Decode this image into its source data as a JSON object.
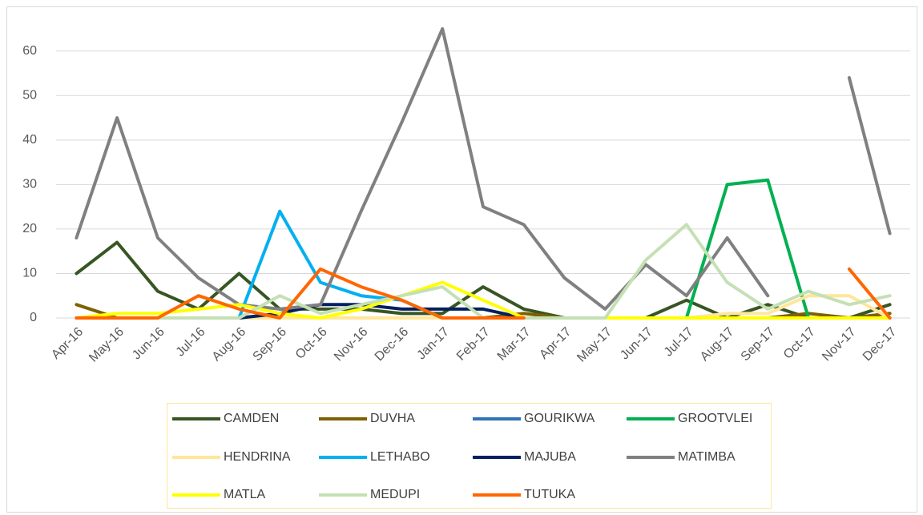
{
  "chart_data": {
    "type": "line",
    "categories": [
      "Apr-16",
      "May-16",
      "Jun-16",
      "Jul-16",
      "Aug-16",
      "Sep-16",
      "Oct-16",
      "Nov-16",
      "Dec-16",
      "Jan-17",
      "Feb-17",
      "Mar-17",
      "Apr-17",
      "May-17",
      "Jun-17",
      "Jul-17",
      "Aug-17",
      "Sep-17",
      "Oct-17",
      "Nov-17",
      "Dec-17"
    ],
    "series": [
      {
        "name": "CAMDEN",
        "color": "#375623",
        "values": [
          10,
          17,
          6,
          2,
          10,
          2,
          2,
          2,
          1,
          1,
          7,
          2,
          0,
          0,
          0,
          4,
          0,
          3,
          0,
          0,
          3
        ]
      },
      {
        "name": "DUVHA",
        "color": "#7f6000",
        "values": [
          3,
          0,
          0,
          0,
          0,
          0,
          0,
          0,
          0,
          0,
          0,
          1,
          0,
          0,
          0,
          0,
          0,
          0,
          1,
          0,
          1
        ]
      },
      {
        "name": "GOURIKWA",
        "color": "#2e75b6",
        "values": [
          0,
          0,
          0,
          0,
          0,
          0,
          0,
          0,
          0,
          0,
          0,
          0,
          0,
          0,
          0,
          0,
          0,
          0,
          0,
          0,
          0
        ]
      },
      {
        "name": "GROOTVLEI",
        "color": "#00b050",
        "values": [
          0,
          0,
          0,
          0,
          0,
          0,
          0,
          0,
          0,
          0,
          0,
          0,
          0,
          0,
          0,
          0,
          30,
          31,
          0,
          0,
          0
        ]
      },
      {
        "name": "HENDRINA",
        "color": "#ffe699",
        "values": [
          0,
          0,
          0,
          0,
          0,
          0,
          0,
          0,
          0,
          0,
          0,
          0,
          0,
          0,
          0,
          0,
          1,
          1,
          5,
          5,
          0
        ]
      },
      {
        "name": "LETHABO",
        "color": "#00b0f0",
        "values": [
          0,
          0,
          0,
          0,
          0,
          24,
          8,
          5,
          4,
          0,
          0,
          0,
          0,
          0,
          0,
          0,
          0,
          0,
          0,
          0,
          0
        ]
      },
      {
        "name": "MAJUBA",
        "color": "#002060",
        "values": [
          0,
          0,
          0,
          0,
          0,
          1,
          3,
          3,
          2,
          2,
          2,
          0,
          0,
          0,
          0,
          0,
          0,
          0,
          0,
          0,
          0
        ]
      },
      {
        "name": "MATIMBA",
        "color": "#808080",
        "values": [
          18,
          45,
          18,
          9,
          3,
          2,
          3,
          24,
          44,
          65,
          25,
          21,
          9,
          2,
          12,
          5,
          18,
          5,
          null,
          54,
          19
        ]
      },
      {
        "name": "MATLA",
        "color": "#ffff00",
        "values": [
          0,
          1,
          1,
          2,
          3,
          1,
          0,
          2,
          5,
          8,
          4,
          0,
          0,
          0,
          0,
          0,
          0,
          0,
          0,
          0,
          0
        ]
      },
      {
        "name": "MEDUPI",
        "color": "#c5e0b4",
        "values": [
          0,
          0,
          0,
          0,
          0,
          5,
          1,
          3,
          5,
          7,
          0,
          0,
          0,
          0,
          13,
          21,
          8,
          2,
          6,
          3,
          5
        ]
      },
      {
        "name": "TUTUKA",
        "color": "#ff6600",
        "values": [
          0,
          0,
          0,
          5,
          2,
          0,
          11,
          7,
          4,
          0,
          0,
          0,
          null,
          null,
          null,
          null,
          null,
          null,
          null,
          11,
          0
        ]
      }
    ],
    "ylim": [
      0,
      65
    ],
    "yticks": [
      0,
      10,
      20,
      30,
      40,
      50,
      60
    ],
    "grid": true
  }
}
